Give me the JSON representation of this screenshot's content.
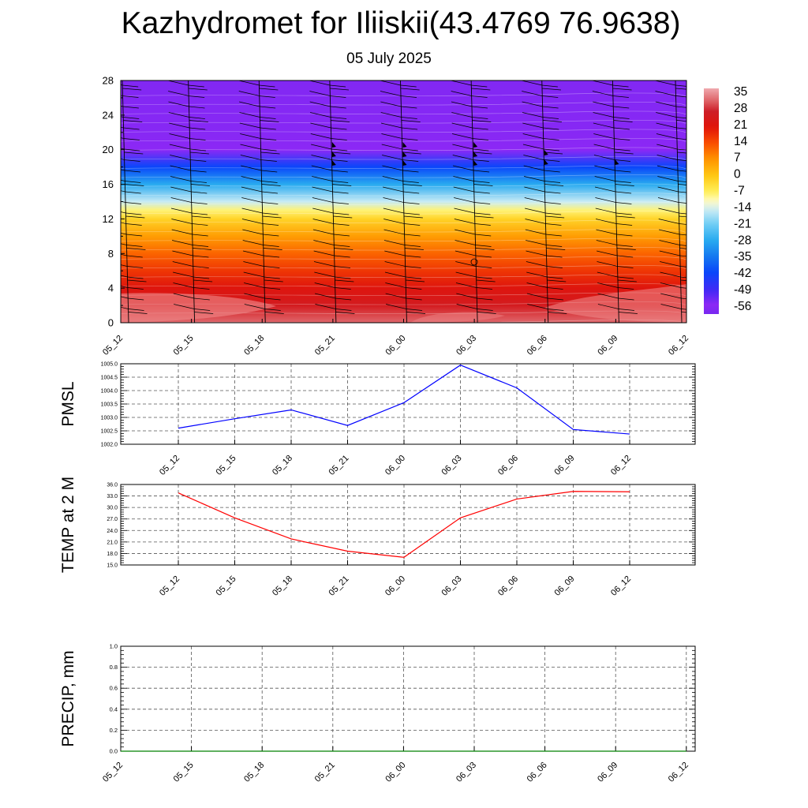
{
  "title": "Kazhydromet for Iliiskii(43.4769 76.9638)",
  "subtitle": "05 July 2025",
  "colors": {
    "pmsl_line": "#0000ff",
    "temp_line": "#ff0000",
    "precip_line": "#008000",
    "grid": "#555555",
    "axis": "#000000"
  },
  "chart_data": [
    {
      "type": "heatmap",
      "title": "",
      "xlabel": "",
      "ylabel": "",
      "x_ticks": [
        "05_12",
        "05_15",
        "05_18",
        "05_21",
        "06_00",
        "06_03",
        "06_06",
        "06_09",
        "06_12"
      ],
      "y_ticks": [
        "0",
        "4",
        "8",
        "12",
        "16",
        "20",
        "24",
        "28"
      ],
      "ylim": [
        0,
        28
      ],
      "colorbar_labels": [
        "35",
        "28",
        "21",
        "14",
        "7",
        "0",
        "-7",
        "-14",
        "-21",
        "-28",
        "-35",
        "-42",
        "-49",
        "-56"
      ],
      "colorbar_range": [
        -60,
        38
      ],
      "temperature_profile": [
        {
          "height": 0,
          "value": 33
        },
        {
          "height": 2,
          "value": 26
        },
        {
          "height": 4,
          "value": 22
        },
        {
          "height": 6,
          "value": 17
        },
        {
          "height": 8,
          "value": 12
        },
        {
          "height": 10,
          "value": 6
        },
        {
          "height": 12,
          "value": -2
        },
        {
          "height": 13,
          "value": -8
        },
        {
          "height": 14,
          "value": -15
        },
        {
          "height": 16,
          "value": -28
        },
        {
          "height": 18,
          "value": -42
        },
        {
          "height": 20,
          "value": -56
        },
        {
          "height": 22,
          "value": -57
        },
        {
          "height": 28,
          "value": -58
        }
      ],
      "wind_barbs": "present at each time step",
      "grid": false
    },
    {
      "type": "line",
      "title": "",
      "xlabel": "",
      "ylabel": "PMSL",
      "x": [
        "05_12",
        "05_15",
        "05_18",
        "05_21",
        "06_00",
        "06_03",
        "06_06",
        "06_09",
        "06_12"
      ],
      "series": [
        {
          "values": [
            1002.6,
            1002.95,
            1003.28,
            1002.7,
            1003.55,
            1004.95,
            1004.1,
            1002.55,
            1002.38
          ]
        }
      ],
      "y_ticks": [
        "1002.0",
        "1002.5",
        "1003.0",
        "1003.5",
        "1004.0",
        "1004.5",
        "1005.0"
      ],
      "ylim": [
        1002.0,
        1005.0
      ],
      "grid": true
    },
    {
      "type": "line",
      "title": "",
      "xlabel": "",
      "ylabel": "TEMP at 2 M",
      "x": [
        "05_12",
        "05_15",
        "05_18",
        "05_21",
        "06_00",
        "06_03",
        "06_06",
        "06_09",
        "06_12"
      ],
      "series": [
        {
          "values": [
            33.8,
            27.3,
            21.8,
            18.6,
            17.0,
            27.3,
            32.2,
            34.2,
            34.1
          ]
        }
      ],
      "y_ticks": [
        "15.0",
        "18.0",
        "21.0",
        "24.0",
        "27.0",
        "30.0",
        "33.0",
        "36.0"
      ],
      "ylim": [
        15.0,
        36.0
      ],
      "grid": true
    },
    {
      "type": "line",
      "title": "",
      "xlabel": "",
      "ylabel": "PRECIP, mm",
      "x": [
        "05_12",
        "05_15",
        "05_18",
        "05_21",
        "06_00",
        "06_03",
        "06_06",
        "06_09",
        "06_12"
      ],
      "series": [
        {
          "values": [
            0,
            0,
            0,
            0,
            0,
            0,
            0,
            0,
            0
          ]
        }
      ],
      "y_ticks": [
        "0.0",
        "0.2",
        "0.4",
        "0.6",
        "0.8",
        "1.0"
      ],
      "ylim": [
        0,
        1.0
      ],
      "grid": true
    }
  ]
}
